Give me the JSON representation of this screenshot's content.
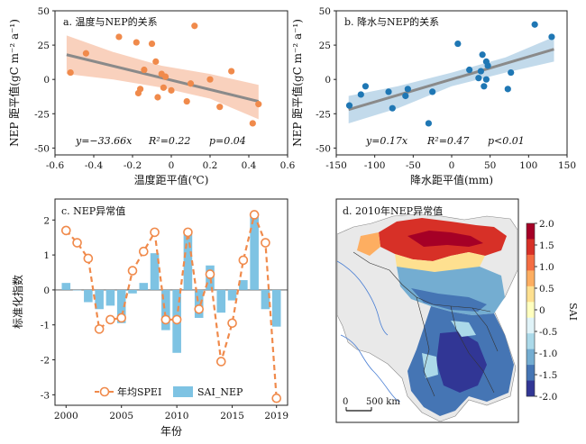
{
  "colors": {
    "orange": "#f08a4b",
    "orange_band": "#f8c9b2",
    "blue": "#1f77b4",
    "blue_band": "#b7d3e8",
    "fit_line": "#8a8a8a",
    "bar": "#7ec3e3",
    "spei": "#f08a4b"
  },
  "chart_data": [
    {
      "type": "scatter",
      "title": "a. 温度与NEP的关系",
      "xlabel": "温度距平值(℃)",
      "ylabel": "NEP 距平值(gC m⁻² a⁻¹)",
      "xlim": [
        -0.6,
        0.6
      ],
      "ylim": [
        -55,
        50
      ],
      "xticks": [
        "-0.6",
        "-0.4",
        "-0.2",
        "0",
        "0.2",
        "0.4",
        "0.6"
      ],
      "yticks": [
        "50",
        "25",
        "0",
        "-25",
        "-50"
      ],
      "xtick_values": [
        -0.6,
        -0.4,
        -0.2,
        0,
        0.2,
        0.4,
        0.6
      ],
      "ytick_values": [
        50,
        25,
        0,
        -25,
        -50
      ],
      "fit": {
        "x": [
          -0.54,
          0.45
        ],
        "y": [
          18,
          -16
        ]
      },
      "band": {
        "x": [
          -0.54,
          -0.3,
          -0.05,
          0.2,
          0.45
        ],
        "upper": [
          32,
          20,
          10,
          4,
          -4
        ],
        "lower": [
          4,
          0,
          -6,
          -14,
          -29
        ]
      },
      "points": {
        "x": [
          -0.52,
          -0.44,
          -0.27,
          -0.18,
          -0.17,
          -0.16,
          -0.14,
          -0.1,
          -0.08,
          -0.07,
          -0.05,
          -0.04,
          -0.03,
          0.0,
          0.08,
          0.1,
          0.12,
          0.2,
          0.25,
          0.31,
          0.42,
          0.45
        ],
        "y": [
          5,
          19,
          31,
          27,
          -10,
          -7,
          7,
          26,
          13,
          -13,
          4,
          -6,
          2,
          -8,
          -16,
          -3,
          39,
          0,
          -20,
          6,
          -32,
          -18
        ]
      },
      "annotation": {
        "equation": "y=−33.66x",
        "r2": "R²=0.22",
        "p": "p=0.04"
      }
    },
    {
      "type": "scatter",
      "title": "b. 降水与NEP的关系",
      "xlabel": "降水距平值(mm)",
      "ylabel": "NEP 距平值(gC m⁻² a⁻¹)",
      "xlim": [
        -150,
        150
      ],
      "ylim": [
        -55,
        50
      ],
      "xticks": [
        "-150",
        "-100",
        "-50",
        "0",
        "50",
        "100",
        "150"
      ],
      "yticks": [
        "50",
        "25",
        "0",
        "-25",
        "-50"
      ],
      "xtick_values": [
        -150,
        -100,
        -50,
        0,
        50,
        100,
        150
      ],
      "ytick_values": [
        50,
        25,
        0,
        -25,
        -50
      ],
      "fit": {
        "x": [
          -134,
          133
        ],
        "y": [
          -22,
          22
        ]
      },
      "band": {
        "x": [
          -134,
          -70,
          0,
          70,
          133
        ],
        "upper": [
          -12,
          -5,
          5,
          16,
          31
        ],
        "lower": [
          -32,
          -21,
          -5,
          5,
          13
        ]
      },
      "points": {
        "x": [
          -133,
          -118,
          -112,
          -82,
          -77,
          -60,
          -57,
          -30,
          -25,
          8,
          23,
          35,
          38,
          40,
          42,
          45,
          45,
          47,
          73,
          77,
          108,
          130
        ],
        "y": [
          -19,
          -11,
          -5,
          -9,
          -21,
          -12,
          -7,
          -32,
          -9,
          26,
          7,
          1,
          6,
          18,
          -5,
          13,
          0,
          10,
          -7,
          5,
          40,
          31
        ]
      },
      "annotation": {
        "equation": "y=0.17x",
        "r2": "R²=0.47",
        "p": "p<0.01"
      }
    },
    {
      "type": "bar",
      "title": "c. NEP异常值",
      "xlabel": "年份",
      "ylabel": "标准化指数",
      "xlim": [
        1999,
        2020
      ],
      "ylim": [
        -3.3,
        2.6
      ],
      "xticks": [
        "2000",
        "2005",
        "2010",
        "2015",
        "2019"
      ],
      "xtick_values": [
        2000,
        2005,
        2010,
        2015,
        2019
      ],
      "yticks": [
        "2",
        "1",
        "0",
        "-1",
        "-2",
        "-3"
      ],
      "ytick_values": [
        2,
        1,
        0,
        -1,
        -2,
        -3
      ],
      "x": [
        2000,
        2001,
        2002,
        2003,
        2004,
        2005,
        2006,
        2007,
        2008,
        2009,
        2010,
        2011,
        2012,
        2013,
        2014,
        2015,
        2016,
        2017,
        2018,
        2019
      ],
      "series": [
        {
          "name": "SAI_NEP",
          "type": "bar",
          "values": [
            0.2,
            0.0,
            -0.35,
            -0.55,
            -0.45,
            -0.95,
            -0.1,
            0.2,
            1.05,
            -1.15,
            -1.8,
            1.65,
            -0.8,
            0.7,
            -0.65,
            -0.3,
            0.28,
            2.1,
            -0.55,
            -1.05
          ]
        },
        {
          "name": "年均SPEI",
          "type": "line",
          "values": [
            1.7,
            1.35,
            0.9,
            -1.12,
            -0.85,
            -0.8,
            0.55,
            1.1,
            1.65,
            -0.85,
            -0.85,
            1.65,
            -0.55,
            0.45,
            -2.05,
            -0.95,
            0.85,
            2.15,
            1.35,
            -3.1
          ]
        }
      ],
      "legend": [
        "年均SPEI",
        "SAI_NEP"
      ],
      "legend_position": "bottom"
    }
  ],
  "map": {
    "title": "d. 2010年NEP异常值",
    "scale_zero": "0",
    "scale_label": "500 km",
    "colorbar": {
      "label": "SAI",
      "ticks": [
        "2.0",
        "1.5",
        "1.0",
        "0.5",
        "0",
        "-0.5",
        "-1.0",
        "-1.5",
        "-2.0"
      ],
      "colors": [
        "#a50026",
        "#d73027",
        "#f46d43",
        "#fdae61",
        "#fee090",
        "#ffffbf",
        "#e0f3f8",
        "#abd9e9",
        "#74add1",
        "#4575b4",
        "#313695"
      ]
    }
  }
}
